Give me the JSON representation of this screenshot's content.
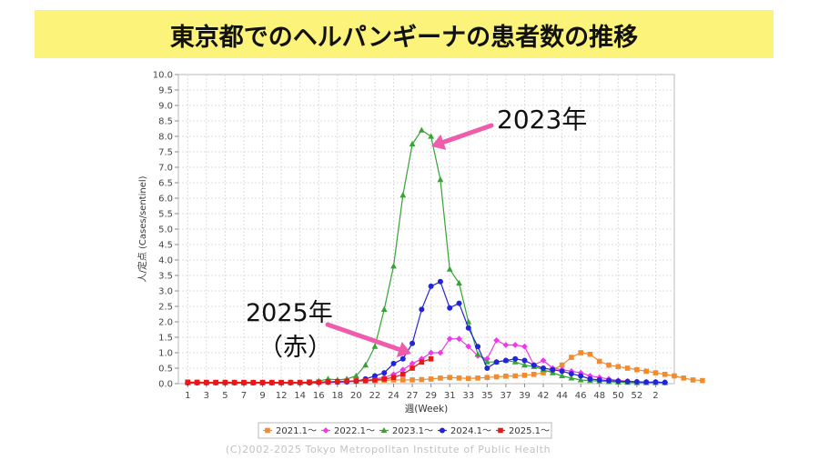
{
  "banner": {
    "title": "東京都でのヘルパンギーナの患者数の推移"
  },
  "annotations": {
    "y2023": "2023年",
    "y2025_line1": "2025年",
    "y2025_line2": "（赤）"
  },
  "copyright": "(C)2002-2025 Tokyo Metropolitan Institute of Public Health",
  "colors": {
    "banner_bg": "#fbf37a",
    "arrow": "#ef5cab"
  },
  "chart_data": {
    "type": "line",
    "xlabel": "週(Week)",
    "ylabel": "人/定点 (Cases/sentinel)",
    "xlim": [
      0,
      53
    ],
    "ylim": [
      0,
      10
    ],
    "x_ticks": [
      "1",
      "3",
      "5",
      "7",
      "9",
      "12",
      "14",
      "16",
      "18",
      "20",
      "22",
      "24",
      "27",
      "29",
      "31",
      "33",
      "35",
      "37",
      "39",
      "42",
      "44",
      "46",
      "48",
      "50",
      "52",
      "2"
    ],
    "y_ticks": [
      "0.0",
      "0.5",
      "1.0",
      "1.5",
      "2.0",
      "2.5",
      "3.0",
      "3.5",
      "4.0",
      "4.5",
      "5.0",
      "5.5",
      "6.0",
      "6.5",
      "7.0",
      "7.5",
      "8.0",
      "8.5",
      "9.0",
      "9.5",
      "10.0"
    ],
    "grid": true,
    "legend_position": "bottom",
    "series": [
      {
        "name": "2021.1～",
        "color": "#f28a2e",
        "marker": "square",
        "values": [
          0.05,
          0.05,
          0.04,
          0.04,
          0.04,
          0.04,
          0.03,
          0.03,
          0.03,
          0.03,
          0.03,
          0.04,
          0.04,
          0.05,
          0.05,
          0.05,
          0.06,
          0.07,
          0.08,
          0.09,
          0.1,
          0.11,
          0.12,
          0.12,
          0.12,
          0.13,
          0.15,
          0.18,
          0.2,
          0.18,
          0.17,
          0.18,
          0.2,
          0.22,
          0.24,
          0.25,
          0.27,
          0.3,
          0.35,
          0.45,
          0.6,
          0.85,
          1.0,
          0.95,
          0.72,
          0.6,
          0.55,
          0.5,
          0.45,
          0.4,
          0.35,
          0.3,
          0.25,
          0.18,
          0.12,
          0.1
        ]
      },
      {
        "name": "2022.1～",
        "color": "#ee3be8",
        "marker": "diamond",
        "values": [
          0.03,
          0.03,
          0.03,
          0.03,
          0.03,
          0.03,
          0.03,
          0.03,
          0.03,
          0.03,
          0.03,
          0.03,
          0.03,
          0.03,
          0.03,
          0.04,
          0.05,
          0.06,
          0.08,
          0.1,
          0.15,
          0.2,
          0.3,
          0.45,
          0.65,
          0.8,
          1.0,
          1.0,
          1.45,
          1.45,
          1.2,
          0.9,
          0.8,
          1.4,
          1.25,
          1.25,
          1.2,
          0.6,
          0.75,
          0.5,
          0.45,
          0.4,
          0.35,
          0.25,
          0.2,
          0.15,
          0.1,
          0.08,
          0.06,
          0.05,
          0.05,
          0.04
        ]
      },
      {
        "name": "2023.1～",
        "color": "#35a335",
        "marker": "triangle",
        "values": [
          0.03,
          0.03,
          0.03,
          0.03,
          0.03,
          0.03,
          0.03,
          0.03,
          0.03,
          0.03,
          0.03,
          0.03,
          0.03,
          0.05,
          0.08,
          0.15,
          0.12,
          0.15,
          0.25,
          0.6,
          1.2,
          2.4,
          3.8,
          6.1,
          7.75,
          8.2,
          8.0,
          6.6,
          3.7,
          3.25,
          2.0,
          0.95,
          0.7,
          0.7,
          0.75,
          0.7,
          0.6,
          0.55,
          0.45,
          0.35,
          0.25,
          0.18,
          0.12,
          0.1,
          0.08,
          0.06,
          0.05,
          0.04,
          0.03,
          0.03,
          0.03,
          0.03
        ]
      },
      {
        "name": "2024.1～",
        "color": "#2323d8",
        "marker": "circle",
        "values": [
          0.03,
          0.03,
          0.03,
          0.03,
          0.03,
          0.03,
          0.03,
          0.03,
          0.03,
          0.03,
          0.03,
          0.03,
          0.03,
          0.03,
          0.04,
          0.05,
          0.05,
          0.06,
          0.08,
          0.15,
          0.25,
          0.35,
          0.65,
          0.8,
          1.3,
          2.4,
          3.15,
          3.3,
          2.45,
          2.6,
          1.8,
          1.2,
          0.5,
          0.7,
          0.75,
          0.8,
          0.75,
          0.6,
          0.5,
          0.45,
          0.4,
          0.32,
          0.25,
          0.15,
          0.12,
          0.1,
          0.08,
          0.07,
          0.06,
          0.05,
          0.05,
          0.04
        ]
      },
      {
        "name": "2025.1～",
        "color": "#e81818",
        "marker": "square",
        "values": [
          0.05,
          0.04,
          0.04,
          0.04,
          0.04,
          0.04,
          0.04,
          0.04,
          0.04,
          0.04,
          0.04,
          0.04,
          0.04,
          0.05,
          0.05,
          0.06,
          0.07,
          0.08,
          0.09,
          0.1,
          0.12,
          0.15,
          0.2,
          0.3,
          0.5,
          0.7,
          0.8
        ]
      }
    ]
  }
}
